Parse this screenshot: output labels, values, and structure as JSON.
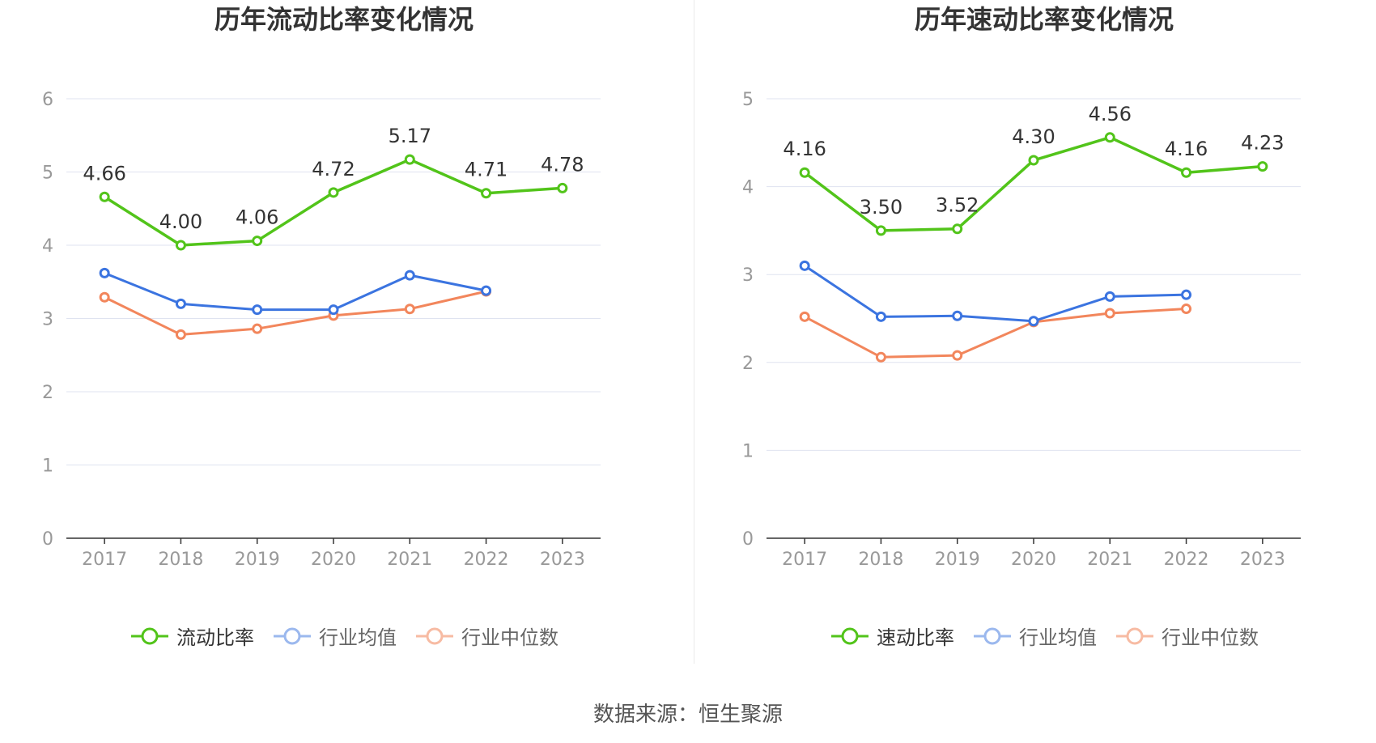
{
  "footer": {
    "source": "数据来源：恒生聚源"
  },
  "colors": {
    "main": "#52c41a",
    "avg": "#3b74e0",
    "median": "#f2865c",
    "grid": "#dfe3f0",
    "axis": "#333333",
    "tick": "#999999"
  },
  "legend_icons": {
    "main": "circle-line-icon",
    "avg": "circle-line-icon",
    "median": "circle-line-icon"
  },
  "chart_data": [
    {
      "type": "line",
      "title": "历年流动比率变化情况",
      "categories": [
        "2017",
        "2018",
        "2019",
        "2020",
        "2021",
        "2022",
        "2023"
      ],
      "ylim": [
        0,
        6
      ],
      "yticks": [
        0,
        1,
        2,
        3,
        4,
        5,
        6
      ],
      "grid": true,
      "legend_position": "bottom",
      "series": [
        {
          "name": "流动比率",
          "values": [
            4.66,
            4.0,
            4.06,
            4.72,
            5.17,
            4.71,
            4.78
          ],
          "labels": [
            "4.66",
            "4.00",
            "4.06",
            "4.72",
            "5.17",
            "4.71",
            "4.78"
          ]
        },
        {
          "name": "行业均值",
          "values": [
            3.62,
            3.2,
            3.12,
            3.12,
            3.59,
            3.38,
            null
          ]
        },
        {
          "name": "行业中位数",
          "values": [
            3.29,
            2.78,
            2.86,
            3.04,
            3.13,
            3.37,
            null
          ]
        }
      ]
    },
    {
      "type": "line",
      "title": "历年速动比率变化情况",
      "categories": [
        "2017",
        "2018",
        "2019",
        "2020",
        "2021",
        "2022",
        "2023"
      ],
      "ylim": [
        0,
        5
      ],
      "yticks": [
        0,
        1,
        2,
        3,
        4,
        5
      ],
      "grid": true,
      "legend_position": "bottom",
      "series": [
        {
          "name": "速动比率",
          "values": [
            4.16,
            3.5,
            3.52,
            4.3,
            4.56,
            4.16,
            4.23
          ],
          "labels": [
            "4.16",
            "3.50",
            "3.52",
            "4.30",
            "4.56",
            "4.16",
            "4.23"
          ]
        },
        {
          "name": "行业均值",
          "values": [
            3.1,
            2.52,
            2.53,
            2.47,
            2.75,
            2.77,
            null
          ]
        },
        {
          "name": "行业中位数",
          "values": [
            2.52,
            2.06,
            2.08,
            2.46,
            2.56,
            2.61,
            null
          ]
        }
      ]
    }
  ]
}
